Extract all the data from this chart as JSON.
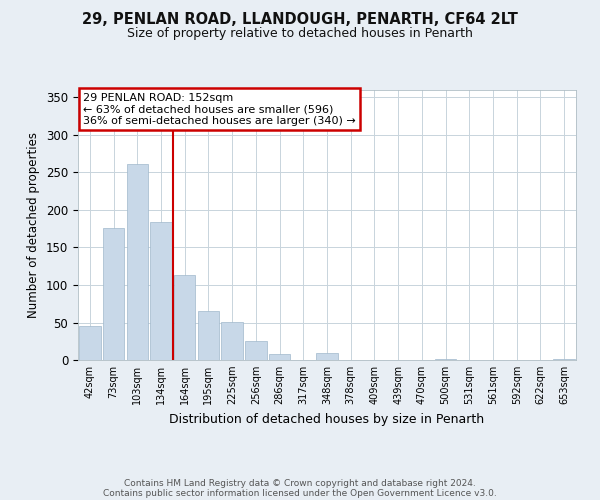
{
  "title": "29, PENLAN ROAD, LLANDOUGH, PENARTH, CF64 2LT",
  "subtitle": "Size of property relative to detached houses in Penarth",
  "xlabel": "Distribution of detached houses by size in Penarth",
  "ylabel": "Number of detached properties",
  "bar_labels": [
    "42sqm",
    "73sqm",
    "103sqm",
    "134sqm",
    "164sqm",
    "195sqm",
    "225sqm",
    "256sqm",
    "286sqm",
    "317sqm",
    "348sqm",
    "378sqm",
    "409sqm",
    "439sqm",
    "470sqm",
    "500sqm",
    "531sqm",
    "561sqm",
    "592sqm",
    "622sqm",
    "653sqm"
  ],
  "bar_values": [
    45,
    176,
    261,
    184,
    114,
    65,
    51,
    25,
    8,
    0,
    9,
    0,
    0,
    0,
    0,
    2,
    0,
    0,
    0,
    0,
    2
  ],
  "bar_color": "#c8d8e8",
  "bar_edgecolor": "#a0b8cc",
  "vline_x": 3.5,
  "vline_color": "#cc0000",
  "annotation_title": "29 PENLAN ROAD: 152sqm",
  "annotation_line1": "← 63% of detached houses are smaller (596)",
  "annotation_line2": "36% of semi-detached houses are larger (340) →",
  "annotation_box_color": "#ffffff",
  "annotation_box_edgecolor": "#cc0000",
  "ylim": [
    0,
    360
  ],
  "yticks": [
    0,
    50,
    100,
    150,
    200,
    250,
    300,
    350
  ],
  "background_color": "#e8eef4",
  "plot_background": "#ffffff",
  "footer_line1": "Contains HM Land Registry data © Crown copyright and database right 2024.",
  "footer_line2": "Contains public sector information licensed under the Open Government Licence v3.0."
}
